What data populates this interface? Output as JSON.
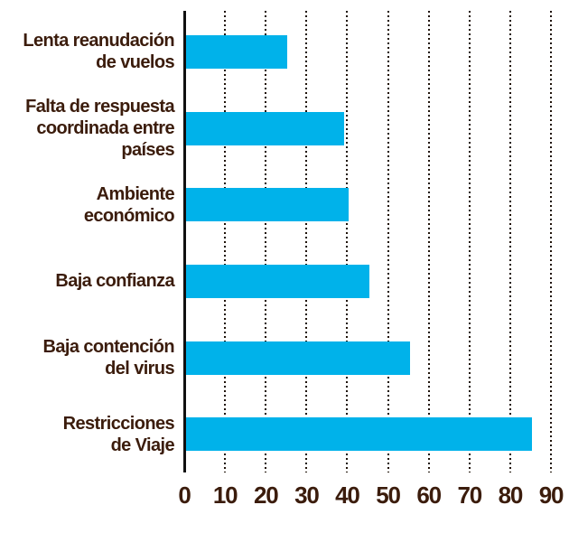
{
  "chart_data": {
    "type": "bar",
    "orientation": "horizontal",
    "title": "",
    "categories": [
      "Lenta reanudación de vuelos",
      "Falta de respuesta coordinada entre países",
      "Ambiente económico",
      "Baja confianza",
      "Baja contención del virus",
      "Restricciones de Viaje"
    ],
    "category_lines": [
      [
        "Lenta reanudación",
        "de vuelos"
      ],
      [
        "Falta de respuesta",
        "coordinada entre",
        "países"
      ],
      [
        "Ambiente",
        "económico"
      ],
      [
        "Baja confianza"
      ],
      [
        "Baja contención",
        "del virus"
      ],
      [
        "Restricciones",
        "de Viaje"
      ]
    ],
    "values": [
      25,
      39,
      40,
      45,
      55,
      85
    ],
    "xlim": [
      0,
      90
    ],
    "xticks": [
      "0",
      "10",
      "20",
      "30",
      "40",
      "50",
      "60",
      "70",
      "80",
      "90"
    ],
    "grid": "vertical-dotted",
    "legend": "none",
    "colors": {
      "bar": "#00b2ea",
      "label_text": "#3b1c0c",
      "tick_text": "#3b1c0c",
      "gridline": "#1f1208",
      "axis": "#101010"
    }
  }
}
